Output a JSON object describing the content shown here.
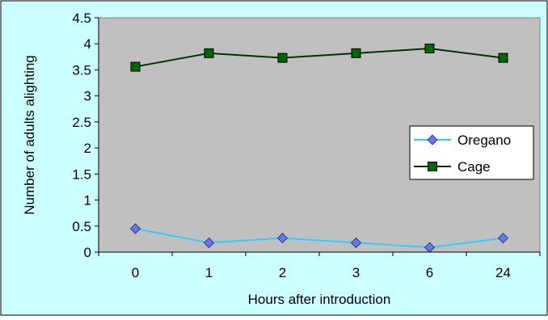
{
  "chart_data": {
    "type": "line",
    "title": "",
    "xlabel": "Hours after introduction",
    "ylabel": "Number of adults alighting",
    "categories": [
      "0",
      "1",
      "2",
      "3",
      "6",
      "24"
    ],
    "ylim": [
      0,
      4.5
    ],
    "yticks": [
      "0",
      "0.5",
      "1",
      "1.5",
      "2",
      "2.5",
      "3",
      "3.5",
      "4",
      "4.5"
    ],
    "grid": false,
    "legend_position": "right",
    "series": [
      {
        "name": "Oregano",
        "values": [
          0.45,
          0.18,
          0.27,
          0.18,
          0.09,
          0.27
        ],
        "color": "#33CCFF",
        "marker": "diamond",
        "marker_color": "#6677EE"
      },
      {
        "name": "Cage",
        "values": [
          3.56,
          3.82,
          3.73,
          3.82,
          3.91,
          3.73
        ],
        "color": "#003300",
        "marker": "square",
        "marker_color": "#006600"
      }
    ],
    "colors": {
      "plot_background": "#C0C0C0",
      "outer_background": "#CCFFFF",
      "axis": "#000000"
    }
  }
}
